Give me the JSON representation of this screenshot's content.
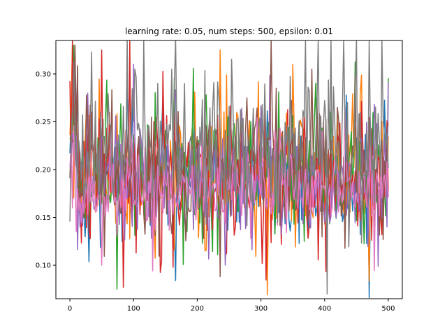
{
  "chart_data": {
    "type": "line",
    "title": "learning rate: 0.05, num steps: 500, epsilon: 0.01",
    "xlabel": "",
    "ylabel": "",
    "xlim": [
      -22,
      522
    ],
    "ylim": [
      0.065,
      0.335
    ],
    "xticks": [
      0,
      100,
      200,
      300,
      400,
      500
    ],
    "yticks": [
      0.1,
      0.15,
      0.2,
      0.25,
      0.3
    ],
    "ytick_labels": [
      "0.10",
      "0.15",
      "0.20",
      "0.25",
      "0.30"
    ],
    "xtick_labels": [
      "0",
      "100",
      "200",
      "300",
      "400",
      "500"
    ],
    "grid": false,
    "legend": "none",
    "x_range": [
      0,
      500
    ],
    "x_step": 2,
    "series": [
      {
        "color": "#1f77b4",
        "base": 0.19,
        "noise": 0.04,
        "seed": 11,
        "spikes": [
          [
            470,
            0.066
          ],
          [
            8,
            0.31
          ]
        ]
      },
      {
        "color": "#ff7f0e",
        "base": 0.195,
        "noise": 0.045,
        "seed": 23,
        "spikes": [
          [
            310,
            0.069
          ],
          [
            4,
            0.33
          ],
          [
            350,
            0.31
          ]
        ]
      },
      {
        "color": "#2ca02c",
        "base": 0.19,
        "noise": 0.042,
        "seed": 37,
        "spikes": [
          [
            74,
            0.075
          ],
          [
            6,
            0.33
          ]
        ]
      },
      {
        "color": "#d62728",
        "base": 0.195,
        "noise": 0.045,
        "seed": 41,
        "spikes": [
          [
            94,
            0.335
          ],
          [
            50,
            0.325
          ],
          [
            4,
            0.335
          ]
        ]
      },
      {
        "color": "#9467bd",
        "base": 0.19,
        "noise": 0.04,
        "seed": 53,
        "spikes": [
          [
            100,
            0.31
          ],
          [
            28,
            0.28
          ]
        ]
      },
      {
        "color": "#8c564b",
        "base": 0.205,
        "noise": 0.045,
        "seed": 67,
        "spikes": [
          [
            236,
            0.088
          ],
          [
            380,
            0.305
          ]
        ]
      },
      {
        "color": "#e377c2",
        "base": 0.18,
        "noise": 0.03,
        "seed": 79,
        "spikes": [
          [
            4,
            0.16
          ],
          [
            10,
            0.135
          ],
          [
            50,
            0.1
          ]
        ]
      },
      {
        "color": "#7f7f7f",
        "base": 0.215,
        "noise": 0.05,
        "seed": 97,
        "spikes": [
          [
            102,
            0.305
          ],
          [
            116,
            0.335
          ],
          [
            160,
            0.305
          ],
          [
            180,
            0.29
          ],
          [
            370,
            0.335
          ],
          [
            390,
            0.335
          ],
          [
            410,
            0.335
          ],
          [
            430,
            0.335
          ],
          [
            450,
            0.335
          ],
          [
            470,
            0.335
          ],
          [
            490,
            0.335
          ]
        ]
      }
    ]
  }
}
